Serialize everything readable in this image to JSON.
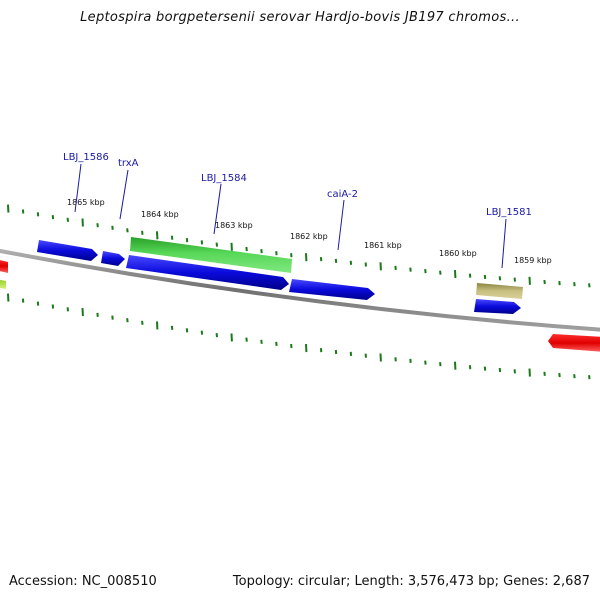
{
  "title": "Leptospira borgpetersenii serovar Hardjo-bovis JB197 chromos...",
  "footer": {
    "accession": "Accession: NC_008510",
    "topology": "Topology: circular; Length: 3,576,473 bp; Genes: 2,687"
  },
  "colors": {
    "backbone": "#808080",
    "ticks": "#1a7a1a",
    "label_line": "#1a1aa6",
    "label_text": "#1a1aa6",
    "blue": "#0a0adc",
    "green": "#38b838",
    "red": "#e00000",
    "olive": "#b0a860",
    "yellow_green": "#b8e040"
  },
  "ticks": {
    "labels": [
      "1865 kbp",
      "1864 kbp",
      "1863 kbp",
      "1862 kbp",
      "1861 kbp",
      "1860 kbp",
      "1859 kbp"
    ]
  },
  "genes": [
    {
      "label": "LBJ_1586",
      "color": "blue"
    },
    {
      "label": "trxA",
      "color": "blue"
    },
    {
      "label": "LBJ_1584",
      "color": "green"
    },
    {
      "label": "caiA-2",
      "color": "blue"
    },
    {
      "label": "LBJ_1581",
      "color": "olive"
    }
  ]
}
